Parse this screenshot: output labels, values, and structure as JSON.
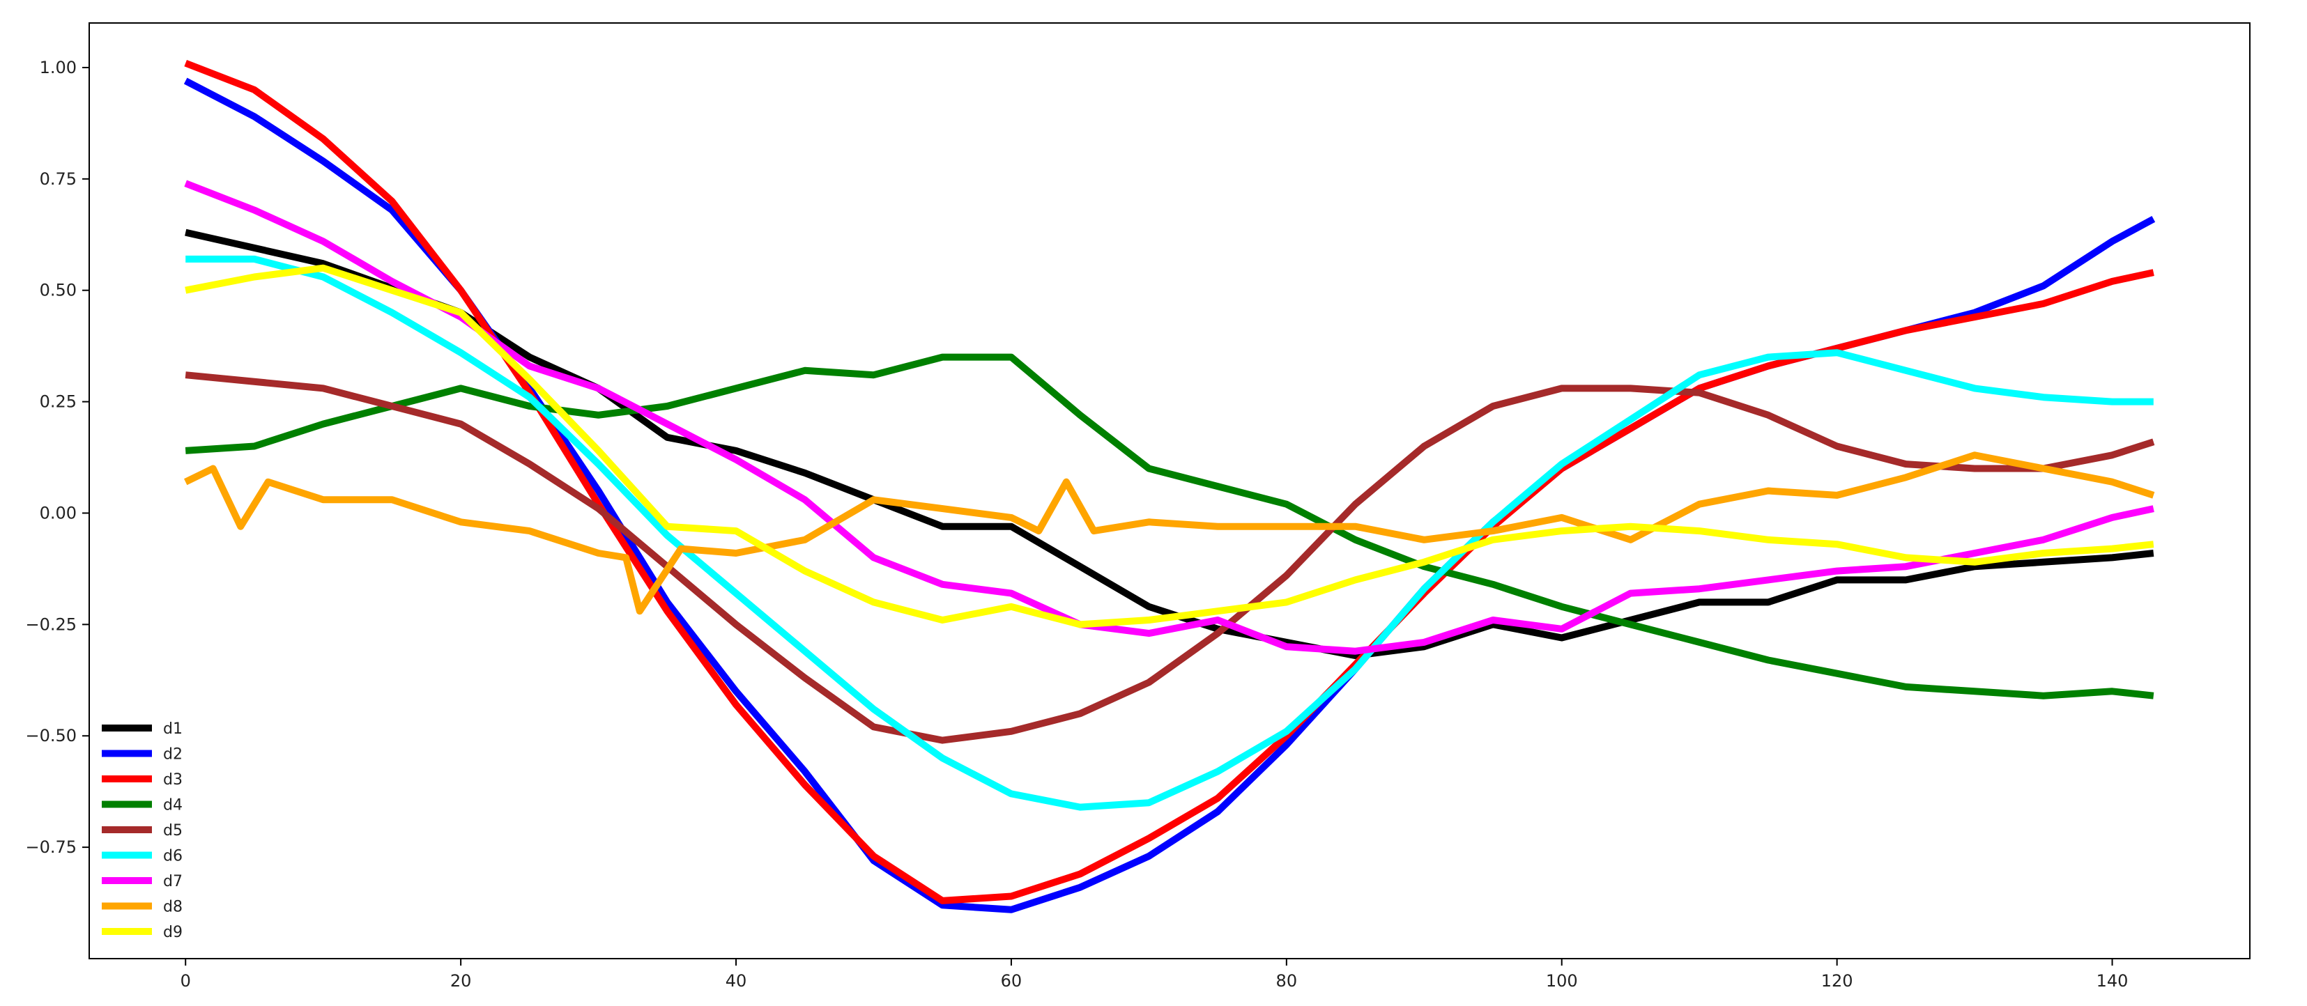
{
  "chart_data": {
    "type": "line",
    "title": "",
    "xlabel": "",
    "ylabel": "",
    "xlim": [
      -7,
      150
    ],
    "ylim": [
      -1.0,
      1.1
    ],
    "grid": false,
    "legend_placement": "lower-left",
    "x_ticks": [
      0,
      20,
      40,
      60,
      80,
      100,
      120,
      140
    ],
    "y_ticks": [
      -0.75,
      -0.5,
      -0.25,
      0.0,
      0.25,
      0.5,
      0.75,
      1.0
    ],
    "y_tick_labels": [
      "−0.75",
      "−0.50",
      "−0.25",
      "0.00",
      "0.25",
      "0.50",
      "0.75",
      "1.00"
    ],
    "series": [
      {
        "name": "d1",
        "color": "#000000",
        "points": [
          [
            0,
            0.63
          ],
          [
            10,
            0.56
          ],
          [
            20,
            0.45
          ],
          [
            25,
            0.35
          ],
          [
            30,
            0.28
          ],
          [
            35,
            0.17
          ],
          [
            40,
            0.14
          ],
          [
            45,
            0.09
          ],
          [
            50,
            0.03
          ],
          [
            55,
            -0.03
          ],
          [
            60,
            -0.03
          ],
          [
            65,
            -0.12
          ],
          [
            70,
            -0.21
          ],
          [
            75,
            -0.26
          ],
          [
            80,
            -0.29
          ],
          [
            85,
            -0.32
          ],
          [
            90,
            -0.3
          ],
          [
            95,
            -0.25
          ],
          [
            100,
            -0.28
          ],
          [
            105,
            -0.24
          ],
          [
            110,
            -0.2
          ],
          [
            115,
            -0.2
          ],
          [
            120,
            -0.15
          ],
          [
            125,
            -0.15
          ],
          [
            130,
            -0.12
          ],
          [
            135,
            -0.11
          ],
          [
            140,
            -0.1
          ],
          [
            143,
            -0.09
          ]
        ]
      },
      {
        "name": "d2",
        "color": "#0000ff",
        "points": [
          [
            0,
            0.97
          ],
          [
            5,
            0.89
          ],
          [
            10,
            0.79
          ],
          [
            15,
            0.68
          ],
          [
            20,
            0.5
          ],
          [
            25,
            0.28
          ],
          [
            30,
            0.05
          ],
          [
            35,
            -0.2
          ],
          [
            40,
            -0.4
          ],
          [
            45,
            -0.58
          ],
          [
            50,
            -0.78
          ],
          [
            55,
            -0.88
          ],
          [
            60,
            -0.89
          ],
          [
            65,
            -0.84
          ],
          [
            70,
            -0.77
          ],
          [
            75,
            -0.67
          ],
          [
            80,
            -0.52
          ],
          [
            85,
            -0.35
          ],
          [
            90,
            -0.17
          ],
          [
            95,
            -0.02
          ],
          [
            100,
            0.1
          ],
          [
            105,
            0.19
          ],
          [
            110,
            0.28
          ],
          [
            115,
            0.33
          ],
          [
            120,
            0.37
          ],
          [
            125,
            0.41
          ],
          [
            130,
            0.45
          ],
          [
            135,
            0.51
          ],
          [
            140,
            0.61
          ],
          [
            143,
            0.66
          ]
        ]
      },
      {
        "name": "d3",
        "color": "#ff0000",
        "points": [
          [
            0,
            1.01
          ],
          [
            5,
            0.95
          ],
          [
            10,
            0.84
          ],
          [
            15,
            0.7
          ],
          [
            20,
            0.5
          ],
          [
            25,
            0.27
          ],
          [
            30,
            0.02
          ],
          [
            35,
            -0.22
          ],
          [
            40,
            -0.43
          ],
          [
            45,
            -0.61
          ],
          [
            50,
            -0.77
          ],
          [
            55,
            -0.87
          ],
          [
            60,
            -0.86
          ],
          [
            65,
            -0.81
          ],
          [
            70,
            -0.73
          ],
          [
            75,
            -0.64
          ],
          [
            80,
            -0.5
          ],
          [
            85,
            -0.34
          ],
          [
            90,
            -0.18
          ],
          [
            95,
            -0.03
          ],
          [
            100,
            0.1
          ],
          [
            105,
            0.19
          ],
          [
            110,
            0.28
          ],
          [
            115,
            0.33
          ],
          [
            120,
            0.37
          ],
          [
            125,
            0.41
          ],
          [
            130,
            0.44
          ],
          [
            135,
            0.47
          ],
          [
            140,
            0.52
          ],
          [
            143,
            0.54
          ]
        ]
      },
      {
        "name": "d4",
        "color": "#008000",
        "points": [
          [
            0,
            0.14
          ],
          [
            5,
            0.15
          ],
          [
            10,
            0.2
          ],
          [
            15,
            0.24
          ],
          [
            20,
            0.28
          ],
          [
            25,
            0.24
          ],
          [
            30,
            0.22
          ],
          [
            35,
            0.24
          ],
          [
            40,
            0.28
          ],
          [
            45,
            0.32
          ],
          [
            50,
            0.31
          ],
          [
            55,
            0.35
          ],
          [
            60,
            0.35
          ],
          [
            65,
            0.22
          ],
          [
            70,
            0.1
          ],
          [
            75,
            0.06
          ],
          [
            80,
            0.02
          ],
          [
            85,
            -0.06
          ],
          [
            90,
            -0.12
          ],
          [
            95,
            -0.16
          ],
          [
            100,
            -0.21
          ],
          [
            105,
            -0.25
          ],
          [
            110,
            -0.29
          ],
          [
            115,
            -0.33
          ],
          [
            120,
            -0.36
          ],
          [
            125,
            -0.39
          ],
          [
            130,
            -0.4
          ],
          [
            135,
            -0.41
          ],
          [
            140,
            -0.4
          ],
          [
            143,
            -0.41
          ]
        ]
      },
      {
        "name": "d5",
        "color": "#a52a2a",
        "points": [
          [
            0,
            0.31
          ],
          [
            10,
            0.28
          ],
          [
            20,
            0.2
          ],
          [
            25,
            0.11
          ],
          [
            30,
            0.01
          ],
          [
            35,
            -0.12
          ],
          [
            40,
            -0.25
          ],
          [
            45,
            -0.37
          ],
          [
            50,
            -0.48
          ],
          [
            55,
            -0.51
          ],
          [
            60,
            -0.49
          ],
          [
            65,
            -0.45
          ],
          [
            70,
            -0.38
          ],
          [
            75,
            -0.27
          ],
          [
            80,
            -0.14
          ],
          [
            85,
            0.02
          ],
          [
            90,
            0.15
          ],
          [
            95,
            0.24
          ],
          [
            100,
            0.28
          ],
          [
            105,
            0.28
          ],
          [
            110,
            0.27
          ],
          [
            115,
            0.22
          ],
          [
            120,
            0.15
          ],
          [
            125,
            0.11
          ],
          [
            130,
            0.1
          ],
          [
            135,
            0.1
          ],
          [
            140,
            0.13
          ],
          [
            143,
            0.16
          ]
        ]
      },
      {
        "name": "d6",
        "color": "#00ffff",
        "points": [
          [
            0,
            0.57
          ],
          [
            5,
            0.57
          ],
          [
            10,
            0.53
          ],
          [
            15,
            0.45
          ],
          [
            20,
            0.36
          ],
          [
            25,
            0.26
          ],
          [
            30,
            0.11
          ],
          [
            35,
            -0.05
          ],
          [
            40,
            -0.18
          ],
          [
            45,
            -0.31
          ],
          [
            50,
            -0.44
          ],
          [
            55,
            -0.55
          ],
          [
            60,
            -0.63
          ],
          [
            65,
            -0.66
          ],
          [
            70,
            -0.65
          ],
          [
            75,
            -0.58
          ],
          [
            80,
            -0.49
          ],
          [
            85,
            -0.35
          ],
          [
            90,
            -0.17
          ],
          [
            95,
            -0.02
          ],
          [
            100,
            0.11
          ],
          [
            105,
            0.21
          ],
          [
            110,
            0.31
          ],
          [
            115,
            0.35
          ],
          [
            120,
            0.36
          ],
          [
            125,
            0.32
          ],
          [
            130,
            0.28
          ],
          [
            135,
            0.26
          ],
          [
            140,
            0.25
          ],
          [
            143,
            0.25
          ]
        ]
      },
      {
        "name": "d7",
        "color": "#ff00ff",
        "points": [
          [
            0,
            0.74
          ],
          [
            5,
            0.68
          ],
          [
            10,
            0.61
          ],
          [
            15,
            0.52
          ],
          [
            20,
            0.44
          ],
          [
            25,
            0.33
          ],
          [
            30,
            0.28
          ],
          [
            35,
            0.2
          ],
          [
            40,
            0.12
          ],
          [
            45,
            0.03
          ],
          [
            50,
            -0.1
          ],
          [
            55,
            -0.16
          ],
          [
            60,
            -0.18
          ],
          [
            65,
            -0.25
          ],
          [
            70,
            -0.27
          ],
          [
            75,
            -0.24
          ],
          [
            80,
            -0.3
          ],
          [
            85,
            -0.31
          ],
          [
            90,
            -0.29
          ],
          [
            95,
            -0.24
          ],
          [
            100,
            -0.26
          ],
          [
            105,
            -0.18
          ],
          [
            110,
            -0.17
          ],
          [
            115,
            -0.15
          ],
          [
            120,
            -0.13
          ],
          [
            125,
            -0.12
          ],
          [
            130,
            -0.09
          ],
          [
            135,
            -0.06
          ],
          [
            140,
            -0.01
          ],
          [
            143,
            0.01
          ]
        ]
      },
      {
        "name": "d8",
        "color": "#ffa500",
        "points": [
          [
            0,
            0.07
          ],
          [
            2,
            0.1
          ],
          [
            4,
            -0.03
          ],
          [
            6,
            0.07
          ],
          [
            10,
            0.03
          ],
          [
            15,
            0.03
          ],
          [
            20,
            -0.02
          ],
          [
            25,
            -0.04
          ],
          [
            30,
            -0.09
          ],
          [
            32,
            -0.1
          ],
          [
            33,
            -0.22
          ],
          [
            36,
            -0.08
          ],
          [
            40,
            -0.09
          ],
          [
            45,
            -0.06
          ],
          [
            50,
            0.03
          ],
          [
            55,
            0.01
          ],
          [
            60,
            -0.01
          ],
          [
            62,
            -0.04
          ],
          [
            64,
            0.07
          ],
          [
            66,
            -0.04
          ],
          [
            70,
            -0.02
          ],
          [
            75,
            -0.03
          ],
          [
            80,
            -0.03
          ],
          [
            85,
            -0.03
          ],
          [
            90,
            -0.06
          ],
          [
            95,
            -0.04
          ],
          [
            100,
            -0.01
          ],
          [
            105,
            -0.06
          ],
          [
            110,
            0.02
          ],
          [
            115,
            0.05
          ],
          [
            120,
            0.04
          ],
          [
            125,
            0.08
          ],
          [
            130,
            0.13
          ],
          [
            135,
            0.1
          ],
          [
            140,
            0.07
          ],
          [
            143,
            0.04
          ]
        ]
      },
      {
        "name": "d9",
        "color": "#ffff00",
        "points": [
          [
            0,
            0.5
          ],
          [
            5,
            0.53
          ],
          [
            10,
            0.55
          ],
          [
            15,
            0.5
          ],
          [
            20,
            0.45
          ],
          [
            25,
            0.3
          ],
          [
            30,
            0.14
          ],
          [
            35,
            -0.03
          ],
          [
            40,
            -0.04
          ],
          [
            45,
            -0.13
          ],
          [
            50,
            -0.2
          ],
          [
            55,
            -0.24
          ],
          [
            60,
            -0.21
          ],
          [
            65,
            -0.25
          ],
          [
            70,
            -0.24
          ],
          [
            75,
            -0.22
          ],
          [
            80,
            -0.2
          ],
          [
            85,
            -0.15
          ],
          [
            90,
            -0.11
          ],
          [
            95,
            -0.06
          ],
          [
            100,
            -0.04
          ],
          [
            105,
            -0.03
          ],
          [
            110,
            -0.04
          ],
          [
            115,
            -0.06
          ],
          [
            120,
            -0.07
          ],
          [
            125,
            -0.1
          ],
          [
            130,
            -0.11
          ],
          [
            135,
            -0.09
          ],
          [
            140,
            -0.08
          ],
          [
            143,
            -0.07
          ]
        ]
      }
    ]
  }
}
